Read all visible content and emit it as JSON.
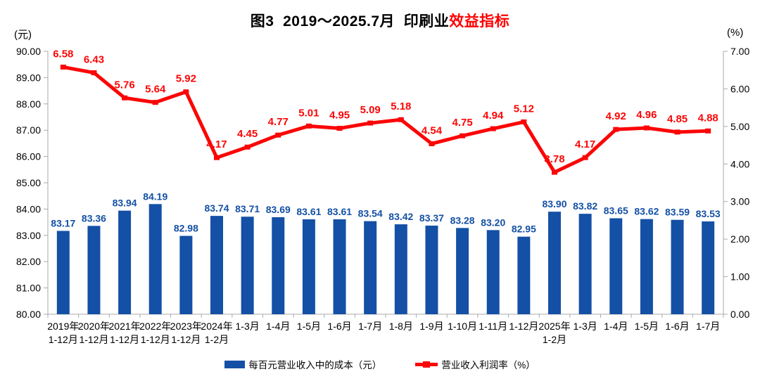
{
  "title": {
    "prefix": "图3  2019～2025.7月  印刷业",
    "highlight": "效益指标"
  },
  "left_axis_unit": "(元)",
  "right_axis_unit": "(%)",
  "colors": {
    "bar_blue": "#1450a5",
    "line_red": "#fb0606",
    "title_highlight_red": "#ff0000",
    "axis_gray": "#aaaaaa",
    "text_black": "#000000"
  },
  "legend": {
    "items": [
      {
        "label": "每百元营业收入中的成本（元）",
        "type": "bar",
        "color": "#1450a5"
      },
      {
        "label": "营业收入利润率（%）",
        "type": "line",
        "color": "#fb0606"
      }
    ]
  },
  "chart_data": {
    "type": "bar",
    "title": "图3 2019～2025.7月 印刷业效益指标",
    "categories": [
      [
        "2019年",
        "1-12月"
      ],
      [
        "2020年",
        "1-12月"
      ],
      [
        "2021年",
        "1-12月"
      ],
      [
        "2022年",
        "1-12月"
      ],
      [
        "2023年",
        "1-12月"
      ],
      [
        "2024年",
        "1-2月"
      ],
      [
        "1-3月"
      ],
      [
        "1-4月"
      ],
      [
        "1-5月"
      ],
      [
        "1-6月"
      ],
      [
        "1-7月"
      ],
      [
        "1-8月"
      ],
      [
        "1-9月"
      ],
      [
        "1-10月"
      ],
      [
        "1-11月"
      ],
      [
        "1-12月"
      ],
      [
        "2025年",
        "1-2月"
      ],
      [
        "1-3月"
      ],
      [
        "1-4月"
      ],
      [
        "1-5月"
      ],
      [
        "1-6月"
      ],
      [
        "1-7月"
      ]
    ],
    "series": [
      {
        "name": "每百元营业收入中的成本（元）",
        "type": "bar",
        "axis": "left",
        "color": "#1450a5",
        "values": [
          83.17,
          83.36,
          83.94,
          84.19,
          82.98,
          83.74,
          83.71,
          83.69,
          83.61,
          83.61,
          83.54,
          83.42,
          83.37,
          83.28,
          83.2,
          82.95,
          83.9,
          83.82,
          83.65,
          83.62,
          83.59,
          83.53
        ]
      },
      {
        "name": "营业收入利润率（%）",
        "type": "line",
        "axis": "right",
        "color": "#fb0606",
        "values": [
          6.58,
          6.43,
          5.76,
          5.64,
          5.92,
          4.17,
          4.45,
          4.77,
          5.01,
          4.95,
          5.09,
          5.18,
          4.54,
          4.75,
          4.94,
          5.12,
          3.78,
          4.17,
          4.92,
          4.96,
          4.85,
          4.88
        ]
      }
    ],
    "left_axis": {
      "label": "(元)",
      "min": 80,
      "max": 90,
      "step": 1,
      "tick_format": "0.00"
    },
    "right_axis": {
      "label": "(%)",
      "min": 0,
      "max": 7,
      "step": 1,
      "tick_format": "0.00"
    },
    "grid": false,
    "legend_position": "bottom"
  }
}
